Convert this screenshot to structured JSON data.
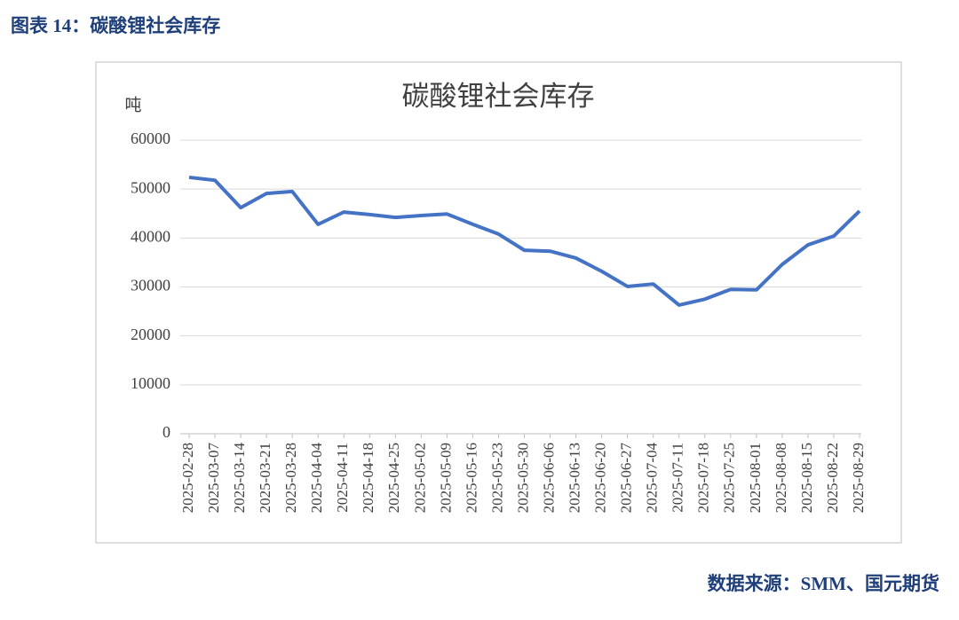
{
  "caption": "图表 14：碳酸锂社会库存",
  "source": "数据来源：SMM、国元期货",
  "chart_data": {
    "type": "line",
    "title": "碳酸锂社会库存",
    "y_label": "吨",
    "categories": [
      "2025-02-28",
      "2025-03-07",
      "2025-03-14",
      "2025-03-21",
      "2025-03-28",
      "2025-04-04",
      "2025-04-11",
      "2025-04-18",
      "2025-04-25",
      "2025-05-02",
      "2025-05-09",
      "2025-05-16",
      "2025-05-23",
      "2025-05-30",
      "2025-06-06",
      "2025-06-13",
      "2025-06-20",
      "2025-06-27",
      "2025-07-04",
      "2025-07-11",
      "2025-07-18",
      "2025-07-25",
      "2025-08-01",
      "2025-08-08",
      "2025-08-15",
      "2025-08-22",
      "2025-08-29"
    ],
    "values": [
      52400,
      51800,
      46200,
      49100,
      49500,
      42800,
      45300,
      44800,
      44200,
      44600,
      44900,
      42800,
      40800,
      37500,
      37300,
      35900,
      33200,
      30100,
      30600,
      26300,
      27500,
      29500,
      29400,
      34600,
      38600,
      40400,
      45500
    ],
    "color": "#4472c4",
    "ylim": [
      0,
      60000
    ],
    "yticks": [
      0,
      10000,
      20000,
      30000,
      40000,
      50000,
      60000
    ],
    "grid": true
  }
}
